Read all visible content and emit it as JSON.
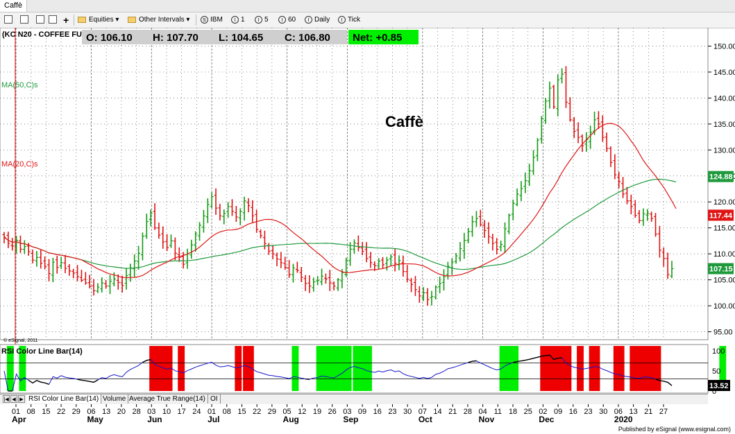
{
  "window": {
    "title": "Caffè"
  },
  "toolbar": {
    "equities": "Equities",
    "intervals": "Other Intervals",
    "interval_s": "IBM",
    "interval_1": "1",
    "interval_5": "5",
    "interval_60": "60",
    "interval_daily": "Daily",
    "interval_tick": "Tick",
    "icon_s": "S",
    "icon_i": "I"
  },
  "symbol": "(KC N20 - COFFEE FU",
  "quote": {
    "open": "O: 106.10",
    "high": "H: 107.70",
    "low": "L: 104.65",
    "close": "C: 106.80",
    "net": "Net: +0.85"
  },
  "chart_label": "Caffè",
  "ma50_label": "MA(50,C)s",
  "ma20_label": "MA(20,C)s",
  "copyright": "© eSignal, 2011",
  "rsi_label": "RSI Color Line Bar(14)",
  "rsi_value": "13.52",
  "tabs": [
    "RSI Color Line Bar(14)",
    "Volume",
    "Average True Range(14)",
    "OI"
  ],
  "publisher": "Published by eSignal (www.esignal.com)",
  "colors": {
    "up_bar": "#119a11",
    "down_bar": "#dd1111",
    "ma20": "#e01414",
    "ma50": "#1e9a3c",
    "rsi_line": "#1414cc",
    "ob_zone": "#ee0000",
    "os_zone": "#00ee00",
    "net_bg": "#00ee00"
  },
  "chart_data": {
    "type": "ohlc",
    "y_ticks": [
      "150.00",
      "145.00",
      "140.00",
      "135.00",
      "130.00",
      "125.00",
      "120.00",
      "115.00",
      "110.00",
      "105.00",
      "100.00",
      "95.00"
    ],
    "ylim": [
      94,
      153
    ],
    "price_labels": [
      {
        "text": "124.88",
        "value": 124.88,
        "series": "ma50"
      },
      {
        "text": "117.44",
        "value": 117.44,
        "series": "ma20"
      },
      {
        "text": "107.15",
        "value": 107.15,
        "series": "price"
      }
    ],
    "x_ticks": [
      "01",
      "08",
      "15",
      "22",
      "29",
      "06",
      "13",
      "20",
      "28",
      "03",
      "10",
      "17",
      "24",
      "01",
      "08",
      "15",
      "22",
      "29",
      "05",
      "12",
      "19",
      "26",
      "03",
      "09",
      "16",
      "23",
      "30",
      "07",
      "14",
      "21",
      "28",
      "04",
      "11",
      "18",
      "25",
      "02",
      "09",
      "16",
      "23",
      "30",
      "06",
      "13",
      "21",
      "27"
    ],
    "month_labels": [
      {
        "label": "Apr",
        "tick": 0
      },
      {
        "label": "May",
        "tick": 5
      },
      {
        "label": "Jun",
        "tick": 9
      },
      {
        "label": "Jul",
        "tick": 13
      },
      {
        "label": "Aug",
        "tick": 18
      },
      {
        "label": "Sep",
        "tick": 22
      },
      {
        "label": "Oct",
        "tick": 27
      },
      {
        "label": "Nov",
        "tick": 31
      },
      {
        "label": "Dec",
        "tick": 35
      },
      {
        "label": "2020",
        "tick": 40
      }
    ],
    "closes": [
      113.2,
      112.0,
      111.5,
      112.6,
      110.9,
      111.4,
      110.4,
      108.8,
      109.3,
      108.2,
      107.6,
      106.2,
      108.4,
      107.4,
      108.3,
      107.2,
      106.7,
      106.3,
      105.6,
      104.9,
      104.4,
      103.7,
      102.9,
      103.6,
      104.4,
      103.8,
      104.7,
      105.2,
      104.5,
      103.9,
      105.8,
      107.3,
      108.6,
      110.1,
      113.4,
      116.2,
      117.8,
      115.0,
      113.6,
      112.3,
      111.2,
      112.5,
      110.1,
      109.3,
      108.0,
      110.0,
      111.7,
      113.8,
      115.5,
      117.3,
      119.5,
      121.0,
      118.8,
      117.3,
      117.8,
      119.1,
      118.2,
      117.1,
      118.2,
      120.2,
      119.3,
      117.3,
      114.7,
      113.5,
      112.0,
      110.5,
      110.0,
      109.0,
      108.3,
      107.4,
      106.0,
      107.3,
      106.8,
      105.5,
      104.3,
      103.8,
      104.6,
      104.9,
      105.7,
      105.2,
      104.4,
      103.8,
      105.0,
      106.4,
      108.8,
      110.9,
      112.1,
      111.2,
      110.5,
      109.1,
      108.3,
      107.7,
      108.6,
      107.9,
      108.8,
      109.4,
      108.2,
      108.7,
      106.6,
      105.1,
      104.1,
      103.1,
      101.9,
      102.5,
      101.2,
      101.8,
      103.6,
      104.3,
      105.6,
      107.6,
      108.4,
      109.6,
      111.0,
      112.6,
      114.3,
      116.2,
      116.8,
      115.6,
      114.5,
      113.3,
      112.0,
      110.9,
      111.8,
      114.8,
      117.4,
      119.7,
      121.5,
      122.6,
      124.1,
      126.0,
      128.6,
      131.9,
      136.1,
      139.4,
      141.9,
      138.3,
      143.5,
      144.6,
      139.2,
      135.8,
      133.6,
      132.4,
      130.8,
      132.0,
      133.4,
      135.8,
      135.0,
      132.4,
      130.3,
      127.6,
      125.2,
      123.9,
      121.5,
      120.2,
      119.1,
      117.4,
      116.4,
      117.7,
      117.8,
      116.8,
      113.8,
      110.7,
      109.1,
      106.0,
      107.15
    ]
  },
  "rsi": {
    "levels": [
      "100",
      "50",
      "0"
    ],
    "upper": 70,
    "lower": 30,
    "red_zones": [
      [
        36,
        41
      ],
      [
        43,
        44
      ],
      [
        57,
        58
      ],
      [
        59,
        61
      ],
      [
        132,
        139
      ],
      [
        141,
        142
      ],
      [
        144,
        146
      ],
      [
        150,
        152
      ],
      [
        154,
        161
      ]
    ],
    "green_zones": [
      [
        1,
        2
      ],
      [
        4,
        5
      ],
      [
        71,
        72
      ],
      [
        77,
        85
      ],
      [
        86,
        90
      ],
      [
        122,
        126
      ],
      [
        176,
        177
      ],
      [
        180,
        189
      ]
    ]
  }
}
